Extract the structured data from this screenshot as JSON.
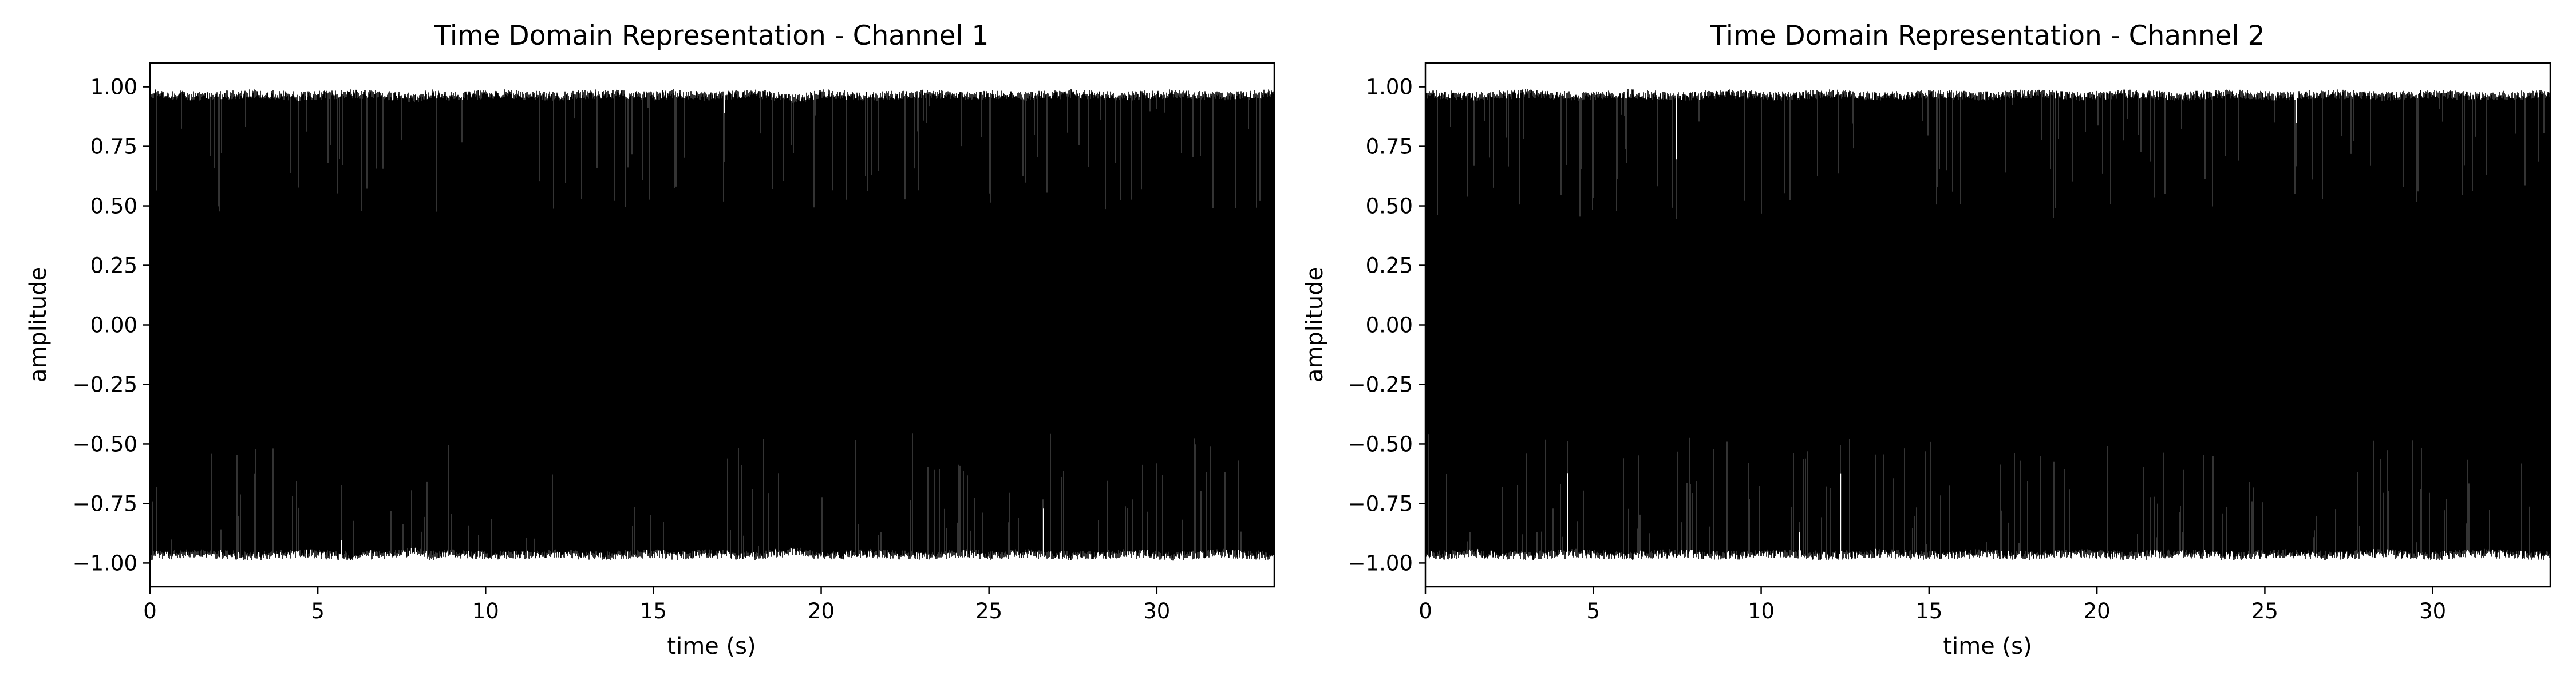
{
  "chart_data": [
    {
      "type": "line",
      "title": "Time Domain Representation - Channel 1",
      "xlabel": "time (s)",
      "ylabel": "amplitude",
      "xlim": [
        0,
        33.5
      ],
      "ylim": [
        -1.1,
        1.1
      ],
      "xticks": [
        0,
        5,
        10,
        15,
        20,
        25,
        30
      ],
      "xtick_labels": [
        "0",
        "5",
        "10",
        "15",
        "20",
        "25",
        "30"
      ],
      "yticks": [
        -1.0,
        -0.75,
        -0.5,
        -0.25,
        0.0,
        0.25,
        0.5,
        0.75,
        1.0
      ],
      "ytick_labels": [
        "−1.00",
        "−0.75",
        "−0.50",
        "−0.25",
        "0.00",
        "0.25",
        "0.50",
        "0.75",
        "1.00"
      ],
      "grid": false,
      "series": [
        {
          "color": "#000000",
          "envelope": {
            "x": [
              0,
              1.5,
              3,
              4.5,
              6,
              7.5,
              8,
              8.3,
              9,
              10.5,
              12,
              13.5,
              15,
              15.6,
              16.5,
              18,
              19.3,
              20,
              21.5,
              23,
              24.5,
              25,
              26,
              27.5,
              29,
              30.5,
              32,
              33.5
            ],
            "upper": [
              0.99,
              0.98,
              0.99,
              0.98,
              0.99,
              0.98,
              0.97,
              0.99,
              0.98,
              0.99,
              0.98,
              0.99,
              0.98,
              0.99,
              0.98,
              0.99,
              0.97,
              0.99,
              0.98,
              0.99,
              0.98,
              0.99,
              0.98,
              0.99,
              0.98,
              0.99,
              0.98,
              0.99
            ],
            "lower": [
              -0.99,
              -0.98,
              -0.99,
              -0.98,
              -0.99,
              -0.98,
              -0.97,
              -0.99,
              -0.98,
              -0.99,
              -0.98,
              -0.99,
              -0.98,
              -0.99,
              -0.98,
              -0.99,
              -0.97,
              -0.99,
              -0.98,
              -0.99,
              -0.98,
              -0.99,
              -0.98,
              -0.99,
              -0.98,
              -0.99,
              -0.98,
              -0.99
            ]
          }
        }
      ]
    },
    {
      "type": "line",
      "title": "Time Domain Representation - Channel 2",
      "xlabel": "time (s)",
      "ylabel": "amplitude",
      "xlim": [
        0,
        33.5
      ],
      "ylim": [
        -1.1,
        1.1
      ],
      "xticks": [
        0,
        5,
        10,
        15,
        20,
        25,
        30
      ],
      "xtick_labels": [
        "0",
        "5",
        "10",
        "15",
        "20",
        "25",
        "30"
      ],
      "yticks": [
        -1.0,
        -0.75,
        -0.5,
        -0.25,
        0.0,
        0.25,
        0.5,
        0.75,
        1.0
      ],
      "ytick_labels": [
        "−1.00",
        "−0.75",
        "−0.50",
        "−0.25",
        "0.00",
        "0.25",
        "0.50",
        "0.75",
        "1.00"
      ],
      "grid": false,
      "series": [
        {
          "color": "#000000",
          "envelope": {
            "x": [
              0,
              1.5,
              3,
              4.5,
              6,
              7.5,
              9,
              10.5,
              12,
              13.5,
              15,
              16.5,
              18,
              19.5,
              21,
              22.5,
              24,
              25.5,
              27,
              28.5,
              30,
              31.5,
              33.5
            ],
            "upper": [
              0.99,
              0.98,
              0.99,
              0.98,
              0.99,
              0.98,
              0.99,
              0.98,
              0.99,
              0.98,
              0.99,
              0.98,
              0.99,
              0.98,
              0.99,
              0.98,
              0.99,
              0.98,
              0.99,
              0.98,
              0.99,
              0.98,
              0.99
            ],
            "lower": [
              -0.99,
              -0.98,
              -0.99,
              -0.98,
              -0.99,
              -0.98,
              -0.99,
              -0.98,
              -0.99,
              -0.98,
              -0.99,
              -0.98,
              -0.99,
              -0.98,
              -0.99,
              -0.98,
              -0.99,
              -0.98,
              -0.99,
              -0.98,
              -0.99,
              -0.98,
              -0.99
            ]
          }
        }
      ]
    }
  ]
}
